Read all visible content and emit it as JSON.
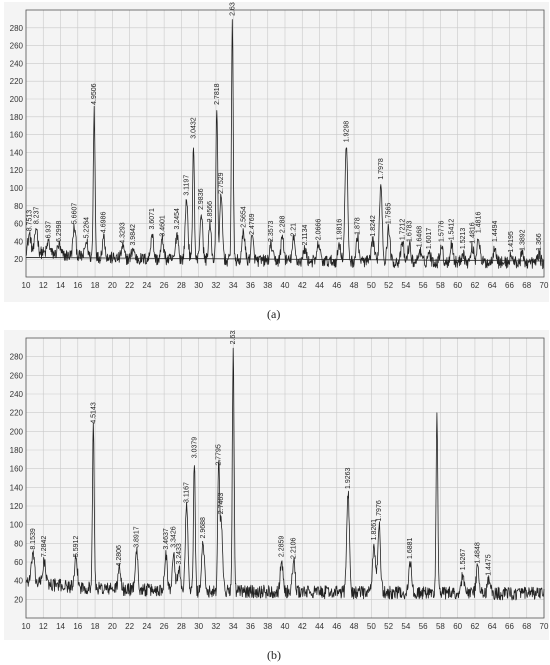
{
  "captions": {
    "a": "(a)",
    "b": "(b)"
  },
  "colors": {
    "trace": "#222222",
    "grid": "#c9c9c9",
    "background": "#f4f4f4",
    "axis": "#555555"
  },
  "chart_data": [
    {
      "type": "line",
      "panel": "a",
      "xlim": [
        10,
        70
      ],
      "ylim": [
        0,
        300
      ],
      "xticks": [
        10,
        12,
        14,
        16,
        18,
        20,
        22,
        24,
        26,
        28,
        30,
        32,
        34,
        36,
        38,
        40,
        42,
        44,
        46,
        48,
        50,
        52,
        54,
        56,
        58,
        60,
        62,
        64,
        66,
        68,
        70
      ],
      "yticks": [
        20,
        40,
        60,
        80,
        100,
        120,
        140,
        160,
        180,
        200,
        220,
        240,
        260,
        280
      ],
      "grid": true,
      "background_line": {
        "x": [
          10,
          70
        ],
        "y": [
          22,
          18
        ]
      },
      "peaks": [
        {
          "x": 10.4,
          "y": 48,
          "label": "8.7513"
        },
        {
          "x": 11.2,
          "y": 56,
          "label": "8.237"
        },
        {
          "x": 12.6,
          "y": 40,
          "label": "6.937"
        },
        {
          "x": 13.8,
          "y": 36,
          "label": "6.2998"
        },
        {
          "x": 15.6,
          "y": 56,
          "label": "5.6607"
        },
        {
          "x": 17.0,
          "y": 40,
          "label": "5.2264"
        },
        {
          "x": 17.9,
          "y": 190,
          "label": "4.9506"
        },
        {
          "x": 19.0,
          "y": 46,
          "label": "4.6986"
        },
        {
          "x": 21.2,
          "y": 34,
          "label": "4.3293"
        },
        {
          "x": 22.4,
          "y": 32,
          "label": "3.9842"
        },
        {
          "x": 24.6,
          "y": 50,
          "label": "3.6071"
        },
        {
          "x": 25.8,
          "y": 42,
          "label": "3.4601"
        },
        {
          "x": 27.5,
          "y": 50,
          "label": "3.2454"
        },
        {
          "x": 28.6,
          "y": 88,
          "label": "3.1197"
        },
        {
          "x": 29.4,
          "y": 152,
          "label": "3.0432"
        },
        {
          "x": 30.3,
          "y": 72,
          "label": "2.9836"
        },
        {
          "x": 31.3,
          "y": 58,
          "label": "2.8566"
        },
        {
          "x": 32.1,
          "y": 190,
          "label": "2.7818"
        },
        {
          "x": 32.6,
          "y": 90,
          "label": "2.7529"
        },
        {
          "x": 33.9,
          "y": 290,
          "label": "2.6345"
        },
        {
          "x": 35.2,
          "y": 52,
          "label": "2.5654"
        },
        {
          "x": 36.2,
          "y": 44,
          "label": "2.4769"
        },
        {
          "x": 38.4,
          "y": 36,
          "label": "2.3573"
        },
        {
          "x": 39.7,
          "y": 46,
          "label": "2.288"
        },
        {
          "x": 41.0,
          "y": 42,
          "label": "2.21"
        },
        {
          "x": 42.3,
          "y": 32,
          "label": "2.1134"
        },
        {
          "x": 43.9,
          "y": 38,
          "label": "2.0666"
        },
        {
          "x": 46.3,
          "y": 38,
          "label": "1.9816"
        },
        {
          "x": 47.1,
          "y": 148,
          "label": "1.9298"
        },
        {
          "x": 48.4,
          "y": 44,
          "label": "1.878"
        },
        {
          "x": 50.2,
          "y": 42,
          "label": "1.8242"
        },
        {
          "x": 51.1,
          "y": 106,
          "label": "1.7978"
        },
        {
          "x": 52.0,
          "y": 56,
          "label": "1.7565"
        },
        {
          "x": 53.6,
          "y": 38,
          "label": "1.7212"
        },
        {
          "x": 54.4,
          "y": 36,
          "label": "1.6783"
        },
        {
          "x": 55.6,
          "y": 30,
          "label": "1.6468"
        },
        {
          "x": 56.7,
          "y": 28,
          "label": "1.6017"
        },
        {
          "x": 58.1,
          "y": 36,
          "label": "1.5776"
        },
        {
          "x": 59.3,
          "y": 38,
          "label": "1.5412"
        },
        {
          "x": 60.6,
          "y": 28,
          "label": "1.5213"
        },
        {
          "x": 61.7,
          "y": 34,
          "label": "1.4816"
        },
        {
          "x": 62.4,
          "y": 46,
          "label": "1.4816"
        },
        {
          "x": 64.3,
          "y": 36,
          "label": "1.4494"
        },
        {
          "x": 66.2,
          "y": 24,
          "label": "1.4195"
        },
        {
          "x": 67.5,
          "y": 26,
          "label": "1.3892"
        },
        {
          "x": 69.4,
          "y": 26,
          "label": "1.366"
        }
      ]
    },
    {
      "type": "line",
      "panel": "b",
      "xlim": [
        10,
        70
      ],
      "ylim": [
        0,
        300
      ],
      "xticks": [
        10,
        12,
        14,
        16,
        18,
        20,
        22,
        24,
        26,
        28,
        30,
        32,
        34,
        36,
        38,
        40,
        42,
        44,
        46,
        48,
        50,
        52,
        54,
        56,
        58,
        60,
        62,
        64,
        66,
        68,
        70
      ],
      "yticks": [
        20,
        40,
        60,
        80,
        100,
        120,
        140,
        160,
        180,
        200,
        220,
        240,
        260,
        280
      ],
      "grid": true,
      "peaks": [
        {
          "x": 10.8,
          "y": 70,
          "label": "8.1539"
        },
        {
          "x": 12.1,
          "y": 62,
          "label": "7.2842"
        },
        {
          "x": 15.8,
          "y": 62,
          "label": "5.5912"
        },
        {
          "x": 17.8,
          "y": 205,
          "label": "4.5143"
        },
        {
          "x": 20.8,
          "y": 52,
          "label": "4.2806"
        },
        {
          "x": 22.8,
          "y": 72,
          "label": "3.8917"
        },
        {
          "x": 26.2,
          "y": 70,
          "label": "3.4637"
        },
        {
          "x": 27.1,
          "y": 72,
          "label": "3.3426"
        },
        {
          "x": 27.7,
          "y": 54,
          "label": "3.2433"
        },
        {
          "x": 28.6,
          "y": 120,
          "label": "3.1167"
        },
        {
          "x": 29.5,
          "y": 168,
          "label": "3.0379"
        },
        {
          "x": 30.5,
          "y": 82,
          "label": "2.9688"
        },
        {
          "x": 32.3,
          "y": 160,
          "label": "2.7795"
        },
        {
          "x": 32.6,
          "y": 108,
          "label": "2.7463"
        },
        {
          "x": 34.0,
          "y": 290,
          "label": "2.6324"
        },
        {
          "x": 39.6,
          "y": 62,
          "label": "2.2859"
        },
        {
          "x": 41.0,
          "y": 60,
          "label": "2.2106"
        },
        {
          "x": 47.3,
          "y": 135,
          "label": "1.9263"
        },
        {
          "x": 50.3,
          "y": 80,
          "label": "1.8261"
        },
        {
          "x": 50.9,
          "y": 100,
          "label": "1.7976"
        },
        {
          "x": 54.5,
          "y": 60,
          "label": "1.6881"
        },
        {
          "x": 57.6,
          "y": 216,
          "label": ""
        },
        {
          "x": 60.6,
          "y": 48,
          "label": "1.5267"
        },
        {
          "x": 62.3,
          "y": 55,
          "label": "1.4848"
        },
        {
          "x": 63.6,
          "y": 42,
          "label": "1.4475"
        }
      ]
    }
  ]
}
